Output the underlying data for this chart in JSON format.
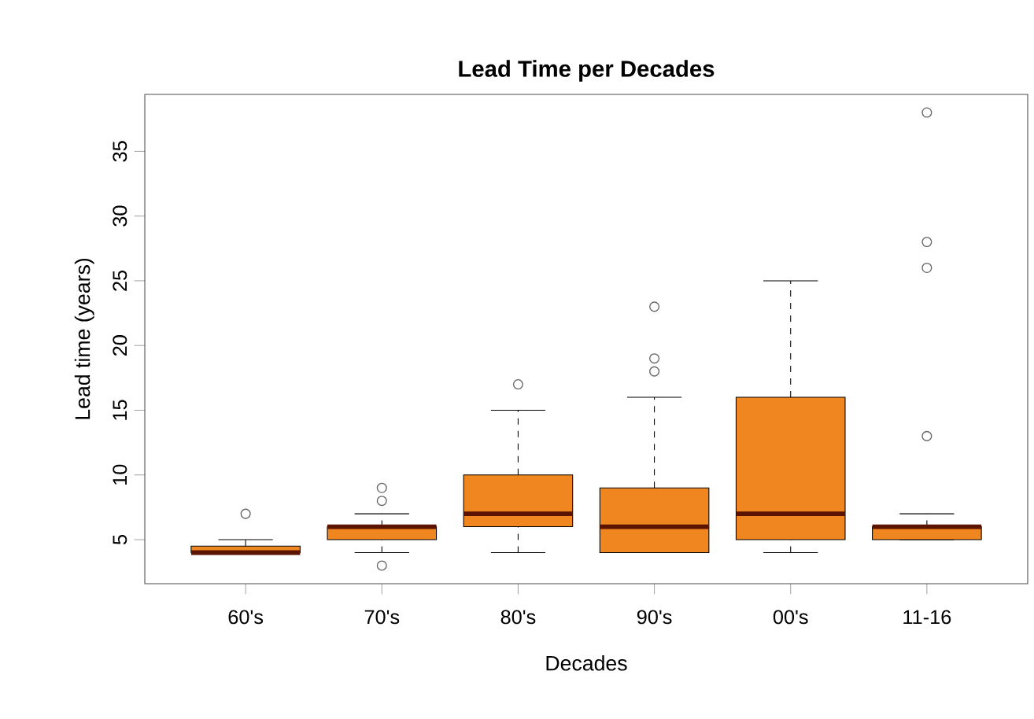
{
  "chart_data": {
    "type": "box",
    "title": "Lead Time per Decades",
    "xlabel": "Decades",
    "ylabel": "Lead time (years)",
    "categories": [
      "60's",
      "70's",
      "80's",
      "90's",
      "00's",
      "11-16"
    ],
    "series": [
      {
        "color": "#f0861f",
        "boxes": [
          {
            "low": 4,
            "q1": 4,
            "median": 4,
            "q3": 4.5,
            "high": 5,
            "outliers": [
              7
            ]
          },
          {
            "low": 4,
            "q1": 5,
            "median": 6,
            "q3": 6,
            "high": 7,
            "outliers": [
              3,
              8,
              9
            ]
          },
          {
            "low": 4,
            "q1": 6,
            "median": 7,
            "q3": 10,
            "high": 15,
            "outliers": [
              17
            ]
          },
          {
            "low": 4,
            "q1": 4,
            "median": 6,
            "q3": 9,
            "high": 16,
            "outliers": [
              18,
              19,
              23
            ]
          },
          {
            "low": 4,
            "q1": 5,
            "median": 7,
            "q3": 16,
            "high": 25
          },
          {
            "low": 5,
            "q1": 5,
            "median": 6,
            "q3": 6,
            "high": 7,
            "outliers": [
              13,
              26,
              28,
              38
            ]
          }
        ]
      }
    ],
    "ylim": [
      1.6,
      39.4
    ],
    "yticks": [
      5,
      10,
      15,
      20,
      25,
      30,
      35
    ]
  }
}
